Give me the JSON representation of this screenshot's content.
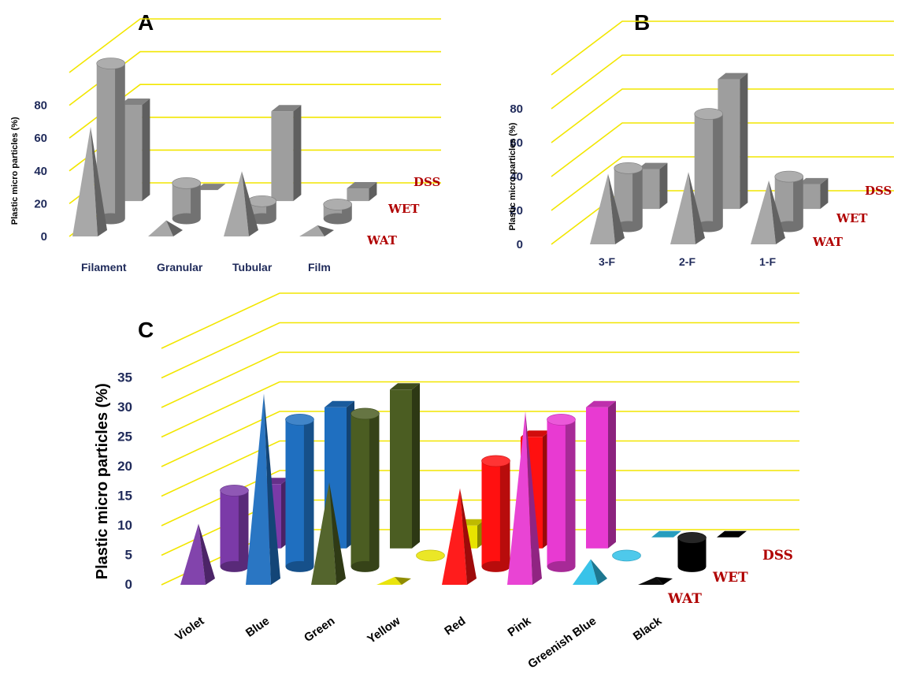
{
  "chart_data": [
    {
      "panel": "A",
      "type": "bar",
      "ylabel": "Plastic micro particles (%)",
      "yticks": [
        0,
        20,
        40,
        60,
        80
      ],
      "ylim": [
        0,
        100
      ],
      "categories": [
        "Filament",
        "Granular",
        "Tubular",
        "Film"
      ],
      "series": [
        {
          "name": "WAT",
          "shape": "pyramid",
          "values": [
            62,
            5,
            35,
            2
          ]
        },
        {
          "name": "WET",
          "shape": "cylinder",
          "values": [
            88,
            15,
            4,
            2
          ]
        },
        {
          "name": "DSS",
          "shape": "box",
          "values": [
            52,
            0,
            48,
            1
          ]
        }
      ],
      "colors": {
        "fill": "#9e9e9e",
        "grid": "#f2e600"
      }
    },
    {
      "panel": "B",
      "type": "bar",
      "ylabel": "Plastic micro particles (%)",
      "yticks": [
        0,
        20,
        40,
        60,
        80
      ],
      "ylim": [
        0,
        100
      ],
      "categories": [
        "3-F",
        "2-F",
        "1-F"
      ],
      "series": [
        {
          "name": "WAT",
          "shape": "pyramid",
          "values": [
            37,
            38,
            33
          ]
        },
        {
          "name": "WET",
          "shape": "cylinder",
          "values": [
            28,
            60,
            23
          ]
        },
        {
          "name": "DSS",
          "shape": "box",
          "values": [
            17,
            70,
            8
          ]
        }
      ],
      "colors": {
        "fill": "#9e9e9e",
        "grid": "#f2e600"
      }
    },
    {
      "panel": "C",
      "type": "bar",
      "ylabel": "Plastic micro particles (%)",
      "yticks": [
        0,
        5,
        10,
        15,
        20,
        25,
        30,
        35
      ],
      "ylim": [
        0,
        40
      ],
      "categories": [
        "Violet",
        "Blue",
        "Green",
        "Yellow",
        "Red",
        "Pink",
        "Greenish Blue",
        "Black"
      ],
      "category_colors": [
        "#7b3aa8",
        "#1f6fc0",
        "#4b5d22",
        "#e8e300",
        "#ff1010",
        "#e83ad2",
        "#2fc0e8",
        "#000000"
      ],
      "series": [
        {
          "name": "WAT",
          "shape": "pyramid",
          "values": [
            9,
            31,
            16,
            0,
            15,
            28,
            3,
            0
          ]
        },
        {
          "name": "WET",
          "shape": "cylinder",
          "values": [
            11,
            23,
            24,
            0,
            16,
            23,
            0,
            3
          ]
        },
        {
          "name": "DSS",
          "shape": "box",
          "values": [
            9,
            22,
            25,
            2,
            17,
            22,
            0,
            0
          ]
        }
      ],
      "colors": {
        "grid": "#f2e600"
      }
    }
  ]
}
